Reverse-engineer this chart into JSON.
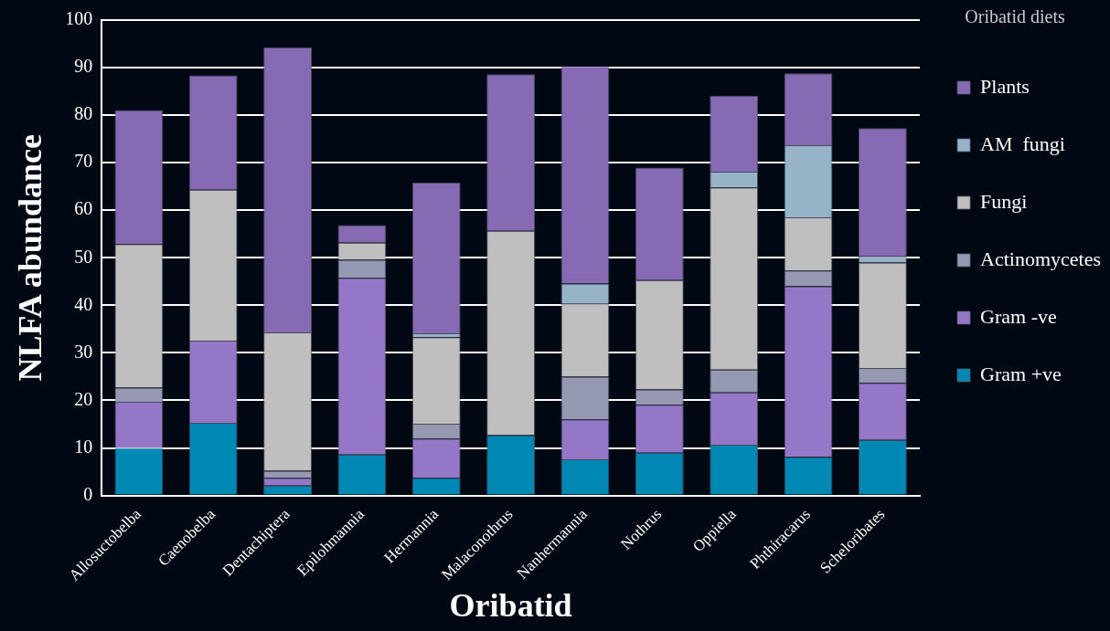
{
  "chart_data": {
    "type": "bar",
    "stacked": true,
    "xlabel": "Oribatid",
    "ylabel": "NLFA abundance",
    "legend_title": "Oribatid diets",
    "categories": [
      "Allosuctobelba",
      "Caenobelba",
      "Dentachiptera",
      "Epilohmannia",
      "Hermannia",
      "Malaconothrus",
      "Nanhermannia",
      "Nothrus",
      "Oppiella",
      "Phthiracarus",
      "Scheloribates"
    ],
    "series": [
      {
        "name": "Gram +ve",
        "color": "#0088b5",
        "values": [
          10,
          15.3,
          2.1,
          8.6,
          3.7,
          12.7,
          7.6,
          9.0,
          10.7,
          8.1,
          11.7
        ]
      },
      {
        "name": "Gram -ve",
        "color": "#9478c7",
        "values": [
          9.7,
          17.3,
          1.6,
          37.2,
          8.3,
          0,
          8.4,
          10.1,
          11.0,
          35.9,
          12.0
        ]
      },
      {
        "name": "Actinomycetes",
        "color": "#9599b2",
        "values": [
          3,
          0,
          1.5,
          3.8,
          3.1,
          0,
          9.0,
          3.2,
          4.8,
          3.3,
          3.1
        ]
      },
      {
        "name": "Fungi",
        "color": "#bfbfbf",
        "values": [
          30.2,
          31.7,
          29.1,
          3.6,
          18.2,
          43.0,
          15.3,
          23.0,
          38.3,
          11.2,
          22.2
        ]
      },
      {
        "name": "AM  fungi",
        "color": "#97b3c8",
        "values": [
          0,
          0,
          0,
          0,
          0.8,
          0,
          4.3,
          0,
          3.3,
          15.2,
          1.3
        ]
      },
      {
        "name": "Plants",
        "color": "#866bb4",
        "values": [
          28.2,
          24.1,
          60.0,
          3.7,
          31.7,
          32.9,
          45.7,
          23.7,
          16.0,
          15.1,
          27.0
        ]
      }
    ],
    "ylim": [
      0,
      100
    ],
    "yticks": [
      0,
      10,
      20,
      30,
      40,
      50,
      60,
      70,
      80,
      90,
      100
    ],
    "grid": "y",
    "legend": "right"
  }
}
